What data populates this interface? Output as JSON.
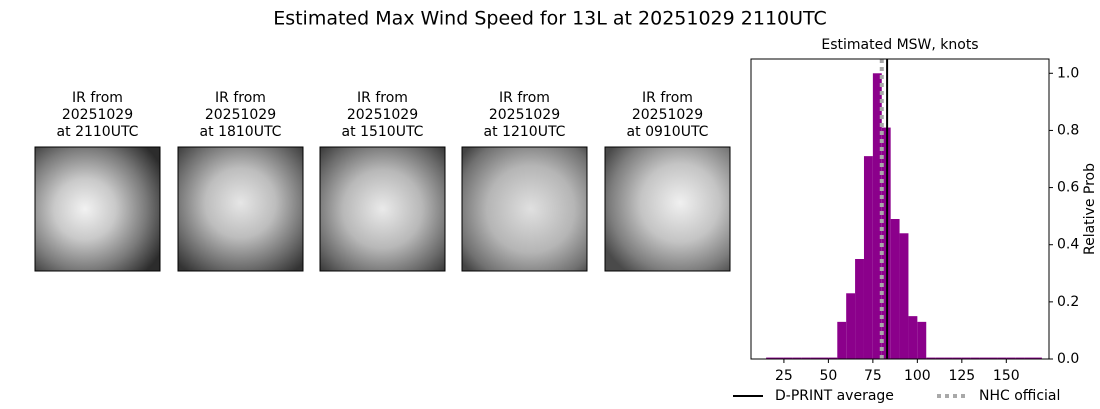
{
  "title": "Estimated Max Wind Speed for 13L at 20251029 2110UTC",
  "panels": [
    {
      "title_lines": [
        "IR from",
        "20251029",
        "at 2110UTC"
      ]
    },
    {
      "title_lines": [
        "IR from",
        "20251029",
        "at 1810UTC"
      ]
    },
    {
      "title_lines": [
        "IR from",
        "20251029",
        "at 1510UTC"
      ]
    },
    {
      "title_lines": [
        "IR from",
        "20251029",
        "at 1210UTC"
      ]
    },
    {
      "title_lines": [
        "IR from",
        "20251029",
        "at 0910UTC"
      ]
    }
  ],
  "chart_data": {
    "type": "histogram",
    "title": "Estimated MSW, knots",
    "y_label": "Relative Prob",
    "y_axis_side": "right",
    "color": "#8b008b",
    "bins": [
      15,
      20,
      25,
      30,
      35,
      40,
      45,
      50,
      55,
      60,
      65,
      70,
      75,
      80,
      85,
      90,
      95,
      100,
      105,
      110,
      115,
      120,
      125,
      130,
      135,
      140,
      145,
      150,
      155,
      160,
      165,
      170
    ],
    "counts": [
      0.005,
      0.005,
      0.005,
      0.005,
      0.005,
      0.005,
      0.005,
      0.005,
      0.13,
      0.23,
      0.35,
      0.71,
      1.0,
      0.81,
      0.49,
      0.44,
      0.15,
      0.13,
      0.005,
      0.005,
      0.005,
      0.005,
      0.005,
      0.005,
      0.005,
      0.005,
      0.005,
      0.005,
      0.005,
      0.005,
      0.005
    ],
    "xlim": [
      6.5,
      174
    ],
    "xticks": [
      25,
      50,
      75,
      100,
      125,
      150
    ],
    "ylim": [
      0,
      1.05
    ],
    "yticks": [
      {
        "value": 0,
        "label": "0.0"
      },
      {
        "value": 0.2,
        "label": "0.2"
      },
      {
        "value": 0.4,
        "label": "0.4"
      },
      {
        "value": 0.6,
        "label": "0.6"
      },
      {
        "value": 0.8,
        "label": "0.8"
      },
      {
        "value": 1.0,
        "label": "1.0"
      }
    ],
    "reference_lines": [
      {
        "name": "D-PRINT average",
        "value": 83,
        "color": "#000000",
        "style": "solid"
      },
      {
        "name": "NHC official",
        "value": 80,
        "color": "#a9a9a9",
        "style": "dotted"
      }
    ]
  }
}
